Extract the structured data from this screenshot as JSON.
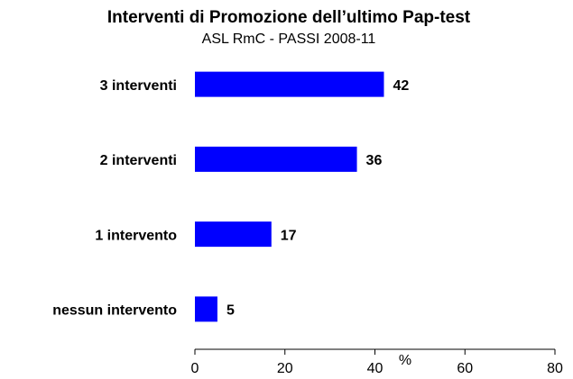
{
  "chart_data": {
    "type": "bar",
    "orientation": "horizontal",
    "title": "Interventi di Promozione dell’ultimo Pap-test",
    "subtitle": "ASL RmC - PASSI 2008-11",
    "categories": [
      "3 interventi",
      "2 interventi",
      "1 intervento",
      "nessun intervento"
    ],
    "values": [
      42,
      36,
      17,
      5
    ],
    "color": "#0000ff",
    "xlabel": "%",
    "xlim": [
      0,
      80
    ],
    "xticks": [
      0,
      20,
      40,
      60,
      80
    ]
  }
}
